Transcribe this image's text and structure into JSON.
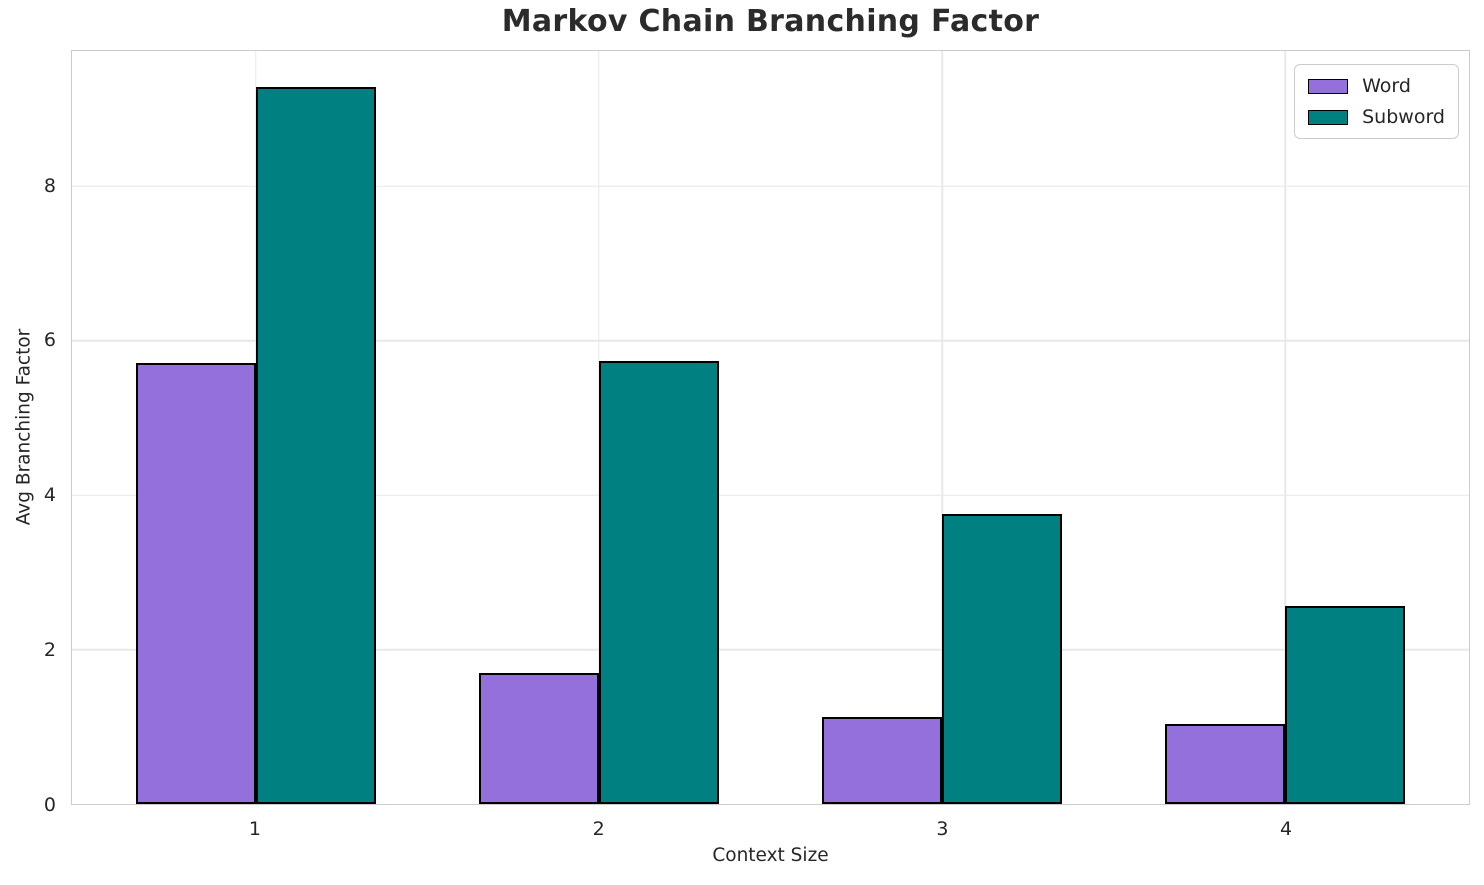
{
  "figure": {
    "background": "#ffffff"
  },
  "chart_data": {
    "type": "bar",
    "title": "Markov Chain Branching Factor",
    "xlabel": "Context Size",
    "ylabel": "Avg Branching Factor",
    "categories": [
      "1",
      "2",
      "3",
      "4"
    ],
    "series": [
      {
        "name": "Word",
        "color": "#9370DB",
        "values": [
          5.71,
          1.7,
          1.13,
          1.04
        ]
      },
      {
        "name": "Subword",
        "color": "#008080",
        "values": [
          9.29,
          5.74,
          3.75,
          2.57
        ]
      }
    ],
    "bar_edge_color": "#000000",
    "bar_width": 0.35,
    "xlim": [
      -0.535,
      3.535
    ],
    "ylim": [
      0,
      9.75
    ],
    "yticks": [
      0,
      2,
      4,
      6,
      8
    ],
    "grid": true,
    "grid_color": "#e8e8e8",
    "spine_color": "#cccccc",
    "text_color": "#262626",
    "legend_position": "upper right"
  }
}
